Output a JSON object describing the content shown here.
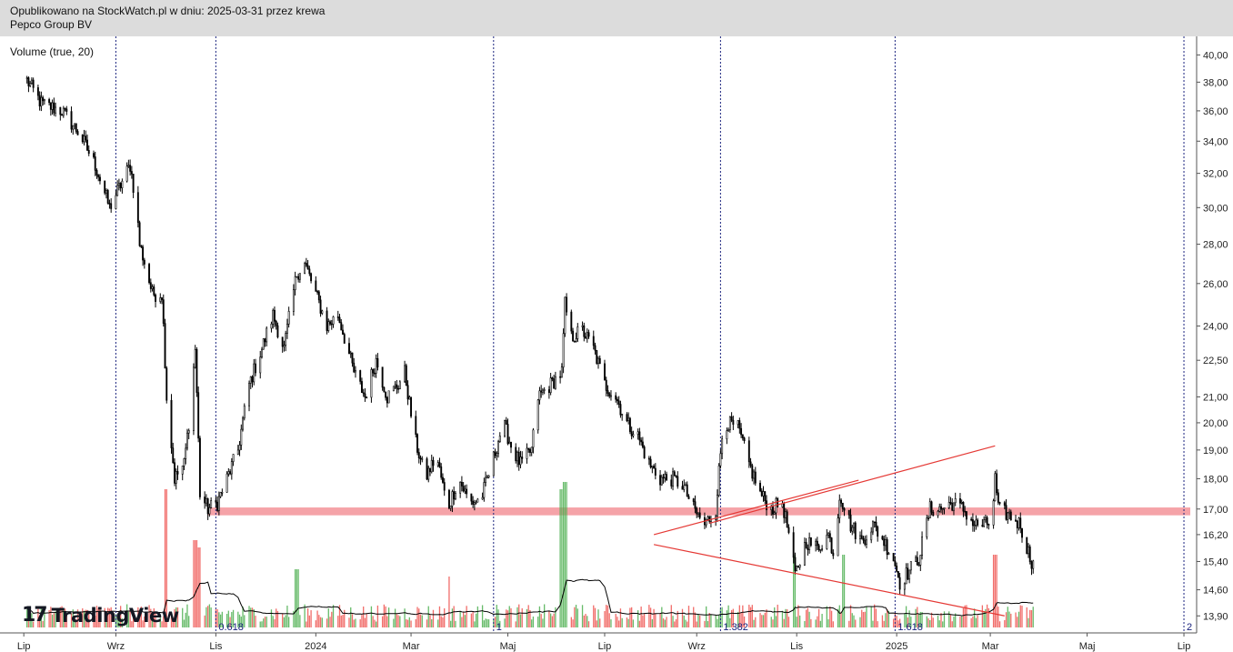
{
  "header": {
    "published": "Opublikowano na StockWatch.pl w dniu: 2025-03-31 przez krewa",
    "instrument": "Pepco Group BV"
  },
  "indicator_label": "Volume (true, 20)",
  "brand": {
    "glyph": "17",
    "name": "TradingView"
  },
  "chart_data": {
    "type": "line",
    "title": "Pepco Group BV",
    "y_axis": {
      "side": "right",
      "scale": "log",
      "ticks": [
        13.9,
        14.6,
        15.4,
        16.2,
        17.0,
        18.0,
        19.0,
        20.0,
        21.0,
        22.5,
        24.0,
        26.0,
        28.0,
        30.0,
        32.0,
        34.0,
        36.0,
        38.0,
        40.0
      ],
      "tick_labels": [
        "13,90",
        "14,60",
        "15,40",
        "16,20",
        "17,00",
        "18,00",
        "19,00",
        "20,00",
        "21,00",
        "22,50",
        "24,00",
        "26,00",
        "28,00",
        "30,00",
        "32,00",
        "34,00",
        "36,00",
        "38,00",
        "40,00"
      ],
      "range": [
        13.6,
        41.0
      ]
    },
    "x_axis": {
      "range": [
        "2023-07-01",
        "2025-07-05"
      ],
      "labels": [
        {
          "date": "2023-07-01",
          "label": "Lip"
        },
        {
          "date": "2023-08-28",
          "label": "Wrz"
        },
        {
          "date": "2023-10-30",
          "label": "Lis"
        },
        {
          "date": "2024-01-01",
          "label": "2024"
        },
        {
          "date": "2024-03-01",
          "label": "Mar"
        },
        {
          "date": "2024-05-01",
          "label": "Maj"
        },
        {
          "date": "2024-07-01",
          "label": "Lip"
        },
        {
          "date": "2024-08-28",
          "label": "Wrz"
        },
        {
          "date": "2024-10-30",
          "label": "Lis"
        },
        {
          "date": "2025-01-01",
          "label": "2025"
        },
        {
          "date": "2025-03-01",
          "label": "Mar"
        },
        {
          "date": "2025-05-01",
          "label": "Maj"
        },
        {
          "date": "2025-07-01",
          "label": "Lip"
        }
      ]
    },
    "price_series": {
      "name": "",
      "points": [
        {
          "x": "2023-07-01",
          "y": 38.5
        },
        {
          "x": "2023-07-12",
          "y": 36.5
        },
        {
          "x": "2023-07-25",
          "y": 36.0
        },
        {
          "x": "2023-08-05",
          "y": 34.5
        },
        {
          "x": "2023-08-15",
          "y": 32.5
        },
        {
          "x": "2023-08-24",
          "y": 30.0
        },
        {
          "x": "2023-09-01",
          "y": 31.5
        },
        {
          "x": "2023-09-06",
          "y": 32.5
        },
        {
          "x": "2023-09-10",
          "y": 30.0
        },
        {
          "x": "2023-09-12",
          "y": 28.0
        },
        {
          "x": "2023-09-20",
          "y": 25.5
        },
        {
          "x": "2023-09-26",
          "y": 25.5
        },
        {
          "x": "2023-09-29",
          "y": 21.0
        },
        {
          "x": "2023-10-04",
          "y": 18.0
        },
        {
          "x": "2023-10-10",
          "y": 18.5
        },
        {
          "x": "2023-10-14",
          "y": 20.5
        },
        {
          "x": "2023-10-17",
          "y": 23.0
        },
        {
          "x": "2023-10-20",
          "y": 17.5
        },
        {
          "x": "2023-10-25",
          "y": 17.0
        },
        {
          "x": "2023-10-31",
          "y": 17.2
        },
        {
          "x": "2023-11-06",
          "y": 18.0
        },
        {
          "x": "2023-11-13",
          "y": 19.0
        },
        {
          "x": "2023-11-20",
          "y": 21.5
        },
        {
          "x": "2023-11-28",
          "y": 23.0
        },
        {
          "x": "2023-12-05",
          "y": 24.5
        },
        {
          "x": "2023-12-12",
          "y": 23.0
        },
        {
          "x": "2023-12-20",
          "y": 26.5
        },
        {
          "x": "2023-12-25",
          "y": 27.0
        },
        {
          "x": "2024-01-01",
          "y": 25.5
        },
        {
          "x": "2024-01-08",
          "y": 24.0
        },
        {
          "x": "2024-01-15",
          "y": 24.5
        },
        {
          "x": "2024-01-25",
          "y": 22.0
        },
        {
          "x": "2024-02-01",
          "y": 21.0
        },
        {
          "x": "2024-02-08",
          "y": 22.5
        },
        {
          "x": "2024-02-15",
          "y": 21.0
        },
        {
          "x": "2024-02-22",
          "y": 21.5
        },
        {
          "x": "2024-02-26",
          "y": 22.0
        },
        {
          "x": "2024-03-03",
          "y": 19.5
        },
        {
          "x": "2024-03-10",
          "y": 18.0
        },
        {
          "x": "2024-03-17",
          "y": 18.8
        },
        {
          "x": "2024-03-24",
          "y": 17.0
        },
        {
          "x": "2024-03-31",
          "y": 18.0
        },
        {
          "x": "2024-04-07",
          "y": 17.2
        },
        {
          "x": "2024-04-14",
          "y": 17.3
        },
        {
          "x": "2024-04-21",
          "y": 18.5
        },
        {
          "x": "2024-04-28",
          "y": 20.0
        },
        {
          "x": "2024-05-04",
          "y": 19.0
        },
        {
          "x": "2024-05-09",
          "y": 18.5
        },
        {
          "x": "2024-05-16",
          "y": 19.0
        },
        {
          "x": "2024-05-20",
          "y": 21.0
        },
        {
          "x": "2024-05-28",
          "y": 21.5
        },
        {
          "x": "2024-06-04",
          "y": 22.0
        },
        {
          "x": "2024-06-06",
          "y": 25.0
        },
        {
          "x": "2024-06-10",
          "y": 23.5
        },
        {
          "x": "2024-06-17",
          "y": 23.8
        },
        {
          "x": "2024-06-24",
          "y": 23.0
        },
        {
          "x": "2024-07-01",
          "y": 21.5
        },
        {
          "x": "2024-07-08",
          "y": 21.0
        },
        {
          "x": "2024-07-15",
          "y": 20.0
        },
        {
          "x": "2024-07-22",
          "y": 19.5
        },
        {
          "x": "2024-07-29",
          "y": 18.5
        },
        {
          "x": "2024-08-05",
          "y": 18.0
        },
        {
          "x": "2024-08-12",
          "y": 18.0
        },
        {
          "x": "2024-08-19",
          "y": 17.8
        },
        {
          "x": "2024-08-26",
          "y": 17.0
        },
        {
          "x": "2024-09-02",
          "y": 16.5
        },
        {
          "x": "2024-09-09",
          "y": 17.0
        },
        {
          "x": "2024-09-13",
          "y": 19.5
        },
        {
          "x": "2024-09-16",
          "y": 20.0
        },
        {
          "x": "2024-09-23",
          "y": 19.8
        },
        {
          "x": "2024-09-30",
          "y": 18.5
        },
        {
          "x": "2024-10-07",
          "y": 17.5
        },
        {
          "x": "2024-10-14",
          "y": 17.0
        },
        {
          "x": "2024-10-21",
          "y": 17.2
        },
        {
          "x": "2024-10-25",
          "y": 16.2
        },
        {
          "x": "2024-10-29",
          "y": 15.0
        },
        {
          "x": "2024-11-05",
          "y": 16.0
        },
        {
          "x": "2024-11-12",
          "y": 15.8
        },
        {
          "x": "2024-11-19",
          "y": 16.2
        },
        {
          "x": "2024-11-23",
          "y": 15.5
        },
        {
          "x": "2024-11-26",
          "y": 17.5
        },
        {
          "x": "2024-12-03",
          "y": 16.5
        },
        {
          "x": "2024-12-10",
          "y": 16.0
        },
        {
          "x": "2024-12-17",
          "y": 16.5
        },
        {
          "x": "2024-12-24",
          "y": 16.0
        },
        {
          "x": "2024-12-30",
          "y": 15.5
        },
        {
          "x": "2025-01-03",
          "y": 14.8
        },
        {
          "x": "2025-01-10",
          "y": 15.2
        },
        {
          "x": "2025-01-15",
          "y": 15.5
        },
        {
          "x": "2025-01-22",
          "y": 17.0
        },
        {
          "x": "2025-01-29",
          "y": 17.0
        },
        {
          "x": "2025-02-05",
          "y": 17.2
        },
        {
          "x": "2025-02-12",
          "y": 17.0
        },
        {
          "x": "2025-02-19",
          "y": 16.5
        },
        {
          "x": "2025-02-26",
          "y": 16.5
        },
        {
          "x": "2025-03-02",
          "y": 16.6
        },
        {
          "x": "2025-03-04",
          "y": 18.0
        },
        {
          "x": "2025-03-06",
          "y": 17.0
        },
        {
          "x": "2025-03-13",
          "y": 16.8
        },
        {
          "x": "2025-03-20",
          "y": 16.5
        },
        {
          "x": "2025-03-24",
          "y": 15.8
        },
        {
          "x": "2025-03-28",
          "y": 15.3
        },
        {
          "x": "2025-03-31",
          "y": 15.3
        }
      ]
    },
    "volume_series": {
      "name": "Volume",
      "peaks": [
        {
          "x": "2023-09-29",
          "v": 0.95,
          "dir": "down"
        },
        {
          "x": "2023-10-17",
          "v": 0.6,
          "dir": "down"
        },
        {
          "x": "2023-10-20",
          "v": 0.55,
          "dir": "down"
        },
        {
          "x": "2023-12-20",
          "v": 0.4,
          "dir": "up"
        },
        {
          "x": "2024-03-24",
          "v": 0.35,
          "dir": "down"
        },
        {
          "x": "2024-06-03",
          "v": 0.95,
          "dir": "up"
        },
        {
          "x": "2024-06-06",
          "v": 1.0,
          "dir": "up"
        },
        {
          "x": "2024-10-28",
          "v": 0.5,
          "dir": "up"
        },
        {
          "x": "2024-11-29",
          "v": 0.5,
          "dir": "up"
        },
        {
          "x": "2025-03-04",
          "v": 0.5,
          "dir": "down"
        }
      ],
      "moving_average_name": "Volume MA 20"
    },
    "support_zone": {
      "y_low": 16.8,
      "y_high": 17.05,
      "x_start": "2023-10-25",
      "x_end": "2025-07-05",
      "color": "#f5a3a8"
    },
    "trendlines": [
      {
        "from": {
          "x": "2024-08-01",
          "y": 16.2
        },
        "to": {
          "x": "2024-12-08",
          "y": 17.95
        },
        "color": "#e53935"
      },
      {
        "from": {
          "x": "2024-08-01",
          "y": 15.9
        },
        "to": {
          "x": "2025-03-10",
          "y": 13.9
        },
        "color": "#e53935"
      },
      {
        "from": {
          "x": "2024-09-05",
          "y": 16.55
        },
        "to": {
          "x": "2025-03-04",
          "y": 19.15
        },
        "color": "#e53935"
      }
    ],
    "fibonacci_time": {
      "color": "#1a237e",
      "lines": [
        {
          "x": "2023-08-28",
          "label": ""
        },
        {
          "x": "2023-10-30",
          "label": "0.618"
        },
        {
          "x": "2024-04-22",
          "label": "1"
        },
        {
          "x": "2024-09-12",
          "label": "1.382"
        },
        {
          "x": "2024-12-31",
          "label": "1.618"
        },
        {
          "x": "2025-07-01",
          "label": "2"
        }
      ]
    },
    "colors": {
      "up": "#4caf50",
      "down": "#ef5350",
      "price": "#000000",
      "ma": "#000000"
    },
    "grid": false,
    "legend": "none"
  }
}
